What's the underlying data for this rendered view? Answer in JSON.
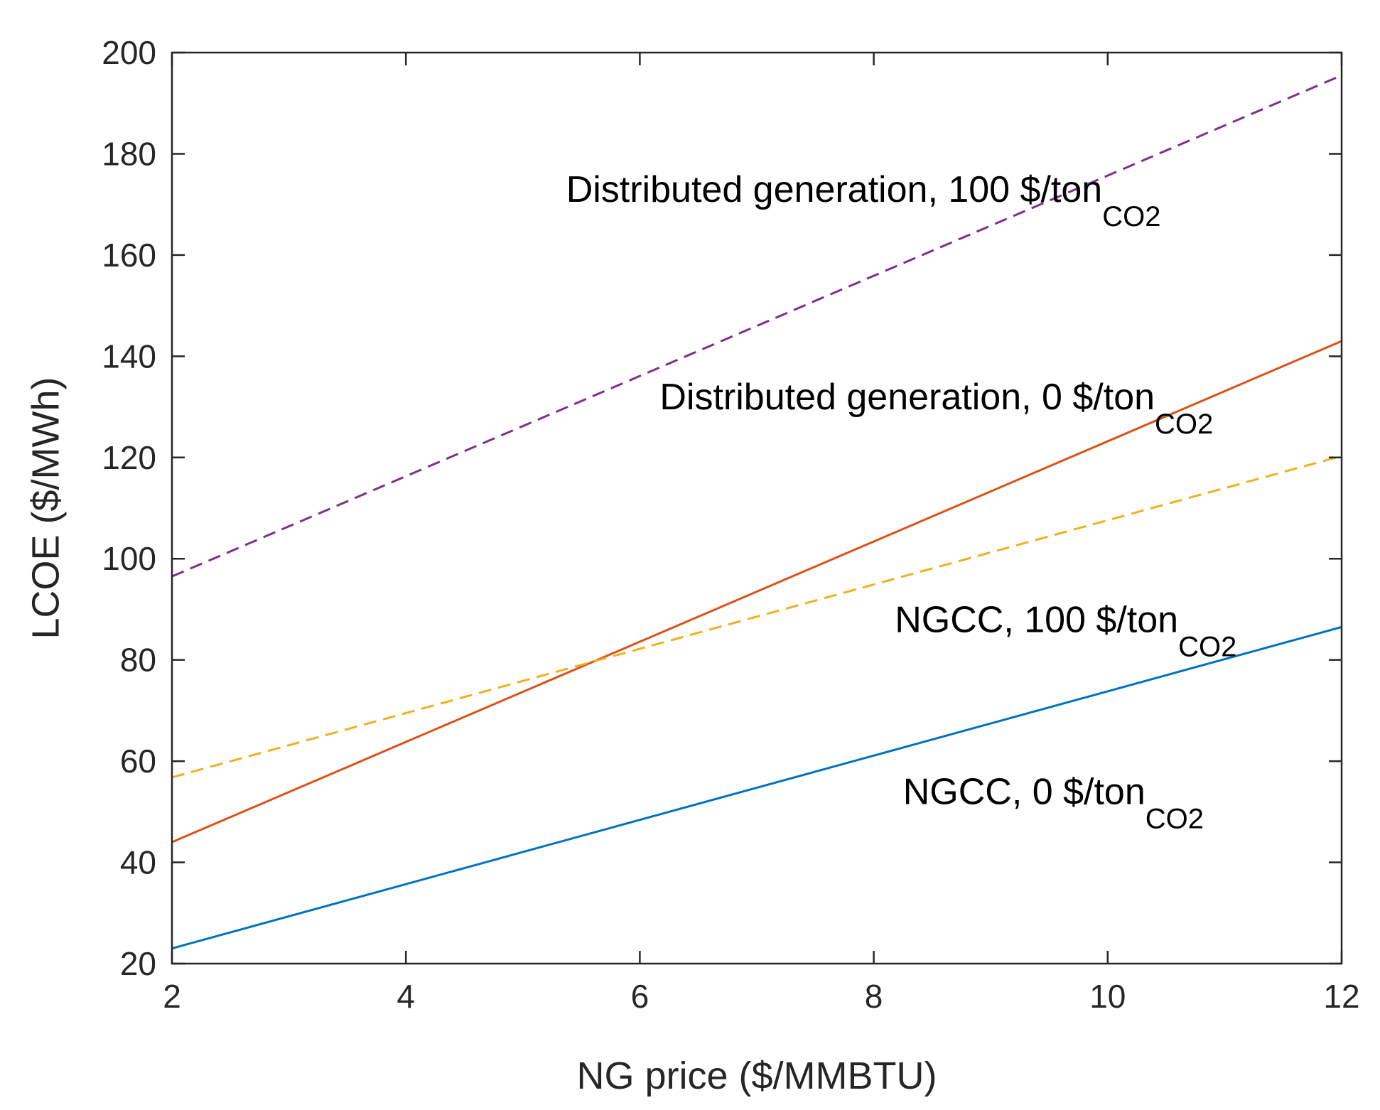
{
  "chart_data": {
    "type": "line",
    "title": "",
    "xlabel": "NG price ($/MMBTU)",
    "ylabel": "LCOE ($/MWh)",
    "xlim": [
      2,
      12
    ],
    "ylim": [
      20,
      200
    ],
    "xticks": [
      2,
      4,
      6,
      8,
      10,
      12
    ],
    "yticks": [
      20,
      40,
      60,
      80,
      100,
      120,
      140,
      160,
      180,
      200
    ],
    "grid": false,
    "legend": "none",
    "x": [
      2,
      12
    ],
    "series": [
      {
        "name": "NGCC, 0 $/ton CO2",
        "values": [
          23,
          86.5
        ],
        "color": "#0072BD",
        "style": "solid"
      },
      {
        "name": "Distributed generation, 0 $/ton CO2",
        "values": [
          44,
          143
        ],
        "color": "#D95319",
        "style": "solid"
      },
      {
        "name": "NGCC, 100 $/ton CO2",
        "values": [
          56.8,
          120.3
        ],
        "color": "#EDB120",
        "style": "dashed"
      },
      {
        "name": "Distributed generation, 100 $/ton CO2",
        "values": [
          96.5,
          195.5
        ],
        "color": "#7E2F8E",
        "style": "dashed"
      }
    ],
    "annotations": [
      {
        "text": "Distributed generation, 100 $/ton",
        "sub": "CO2",
        "x": 5.37,
        "y": 170.5
      },
      {
        "text": "Distributed generation, 0 $/ton",
        "sub": "CO2",
        "x": 6.17,
        "y": 129.5
      },
      {
        "text": "NGCC, 100 $/ton",
        "sub": "CO2",
        "x": 8.18,
        "y": 85.5
      },
      {
        "text": "NGCC, 0 $/ton",
        "sub": "CO2",
        "x": 8.25,
        "y": 51.5
      }
    ]
  }
}
